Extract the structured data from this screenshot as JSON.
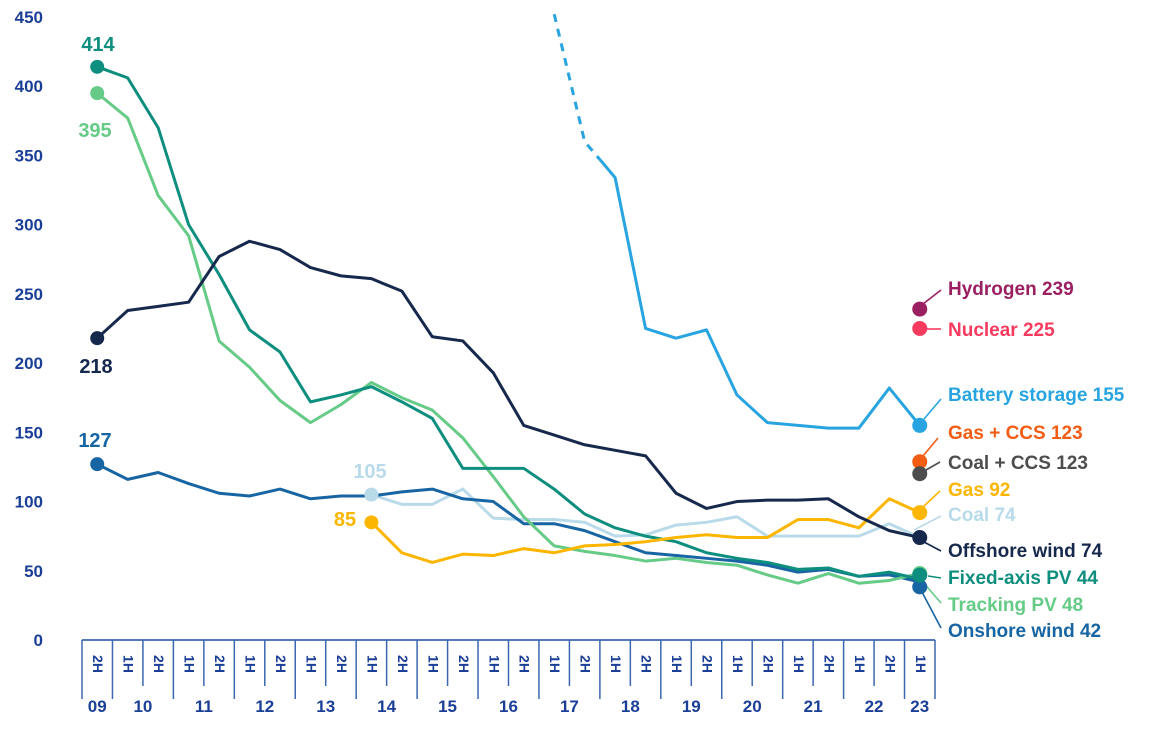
{
  "chart_data": {
    "type": "line",
    "title": "",
    "y_axis": {
      "min": 0,
      "max": 450,
      "step": 50,
      "tick_labels": [
        "450",
        "400",
        "350",
        "300",
        "250",
        "200",
        "150",
        "100",
        "50",
        "0"
      ]
    },
    "x_axis": {
      "half_period_labels": [
        "2H",
        "1H",
        "2H",
        "1H",
        "2H",
        "1H",
        "2H",
        "1H",
        "2H",
        "1H",
        "2H",
        "1H",
        "2H",
        "1H",
        "2H",
        "1H",
        "2H",
        "1H",
        "2H",
        "1H",
        "2H",
        "1H",
        "2H",
        "1H",
        "2H",
        "1H",
        "2H",
        "1H"
      ],
      "year_groups": [
        {
          "label": "09",
          "cells": [
            0,
            0
          ]
        },
        {
          "label": "10",
          "cells": [
            1,
            2
          ]
        },
        {
          "label": "11",
          "cells": [
            3,
            4
          ]
        },
        {
          "label": "12",
          "cells": [
            5,
            6
          ]
        },
        {
          "label": "13",
          "cells": [
            7,
            8
          ]
        },
        {
          "label": "14",
          "cells": [
            9,
            10
          ]
        },
        {
          "label": "15",
          "cells": [
            11,
            12
          ]
        },
        {
          "label": "16",
          "cells": [
            13,
            14
          ]
        },
        {
          "label": "17",
          "cells": [
            15,
            16
          ]
        },
        {
          "label": "18",
          "cells": [
            17,
            18
          ]
        },
        {
          "label": "19",
          "cells": [
            19,
            20
          ]
        },
        {
          "label": "20",
          "cells": [
            21,
            22
          ]
        },
        {
          "label": "21",
          "cells": [
            23,
            24
          ]
        },
        {
          "label": "22",
          "cells": [
            25,
            26
          ]
        },
        {
          "label": "23",
          "cells": [
            27,
            27
          ]
        }
      ]
    },
    "colors": {
      "axis_text": "#1b3f97",
      "axis_line": "#3c67b0"
    },
    "legend_position": "right",
    "grid": "off",
    "series": [
      {
        "id": "coal",
        "name": "Coal",
        "right_label": "Coal 74",
        "color": "#B9DAE9",
        "start_label": "105",
        "start_index": 9,
        "end_dot": false,
        "values": [
          null,
          null,
          null,
          null,
          null,
          null,
          null,
          null,
          null,
          105,
          98,
          98,
          109,
          88,
          87,
          87,
          85,
          75,
          76,
          83,
          85,
          89,
          75,
          75,
          75,
          75,
          84,
          74
        ]
      },
      {
        "id": "onshore-wind",
        "name": "Onshore wind",
        "right_label": "Onshore wind 42",
        "color": "#1765A3",
        "start_label": "127",
        "start_index": 0,
        "end_dot": true,
        "values": [
          127,
          116,
          121,
          113,
          106,
          104,
          109,
          102,
          104,
          104,
          107,
          109,
          102,
          100,
          84,
          84,
          79,
          71,
          63,
          61,
          59,
          57,
          54,
          49,
          51,
          46,
          47,
          42
        ]
      },
      {
        "id": "tracking-pv",
        "name": "Tracking PV",
        "right_label": "Tracking PV 48",
        "color": "#66CB87",
        "start_label": "395",
        "start_index": 0,
        "end_dot": true,
        "values": [
          395,
          377,
          321,
          292,
          216,
          197,
          173,
          157,
          170,
          186,
          175,
          166,
          146,
          118,
          89,
          68,
          64,
          61,
          57,
          59,
          56,
          54,
          47,
          41,
          48,
          41,
          43,
          48
        ]
      },
      {
        "id": "fixed-axis-pv",
        "name": "Fixed-axis PV",
        "right_label": "Fixed-axis PV 44",
        "color": "#0E8E7E",
        "start_label": "414",
        "start_index": 0,
        "end_dot": true,
        "values": [
          414,
          406,
          370,
          300,
          264,
          224,
          208,
          172,
          177,
          183,
          172,
          160,
          124,
          124,
          124,
          109,
          91,
          81,
          75,
          71,
          63,
          59,
          56,
          51,
          52,
          46,
          49,
          44
        ]
      },
      {
        "id": "gas",
        "name": "Gas",
        "right_label": "Gas 92",
        "color": "#FCB600",
        "start_label": "85",
        "start_index": 9,
        "end_dot": true,
        "values": [
          null,
          null,
          null,
          null,
          null,
          null,
          null,
          null,
          null,
          85,
          63,
          56,
          62,
          61,
          66,
          63,
          68,
          69,
          71,
          74,
          76,
          74,
          74,
          87,
          87,
          81,
          102,
          92
        ]
      },
      {
        "id": "offshore-wind",
        "name": "Offshore wind",
        "right_label": "Offshore wind 74",
        "color": "#16294D",
        "start_label": "218",
        "start_index": 0,
        "end_dot": true,
        "values": [
          218,
          238,
          241,
          244,
          277,
          288,
          282,
          269,
          263,
          261,
          252,
          219,
          216,
          193,
          155,
          148,
          141,
          137,
          133,
          106,
          95,
          100,
          101,
          101,
          102,
          89,
          79,
          74
        ]
      },
      {
        "id": "battery-storage",
        "name": "Battery storage",
        "right_label": "Battery storage 155",
        "color": "#28A4E0",
        "start_label": null,
        "start_index": null,
        "end_dot": true,
        "dashed_intro": {
          "indices": [
            15,
            16
          ],
          "values": [
            452,
            360
          ]
        },
        "values": [
          null,
          null,
          null,
          null,
          null,
          null,
          null,
          null,
          null,
          null,
          null,
          null,
          null,
          null,
          null,
          null,
          null,
          334,
          225,
          218,
          224,
          177,
          157,
          155,
          153,
          153,
          182,
          155
        ]
      }
    ],
    "point_markers": [
      {
        "id": "hydrogen",
        "name": "Hydrogen",
        "right_label": "Hydrogen 239",
        "color": "#9B2062",
        "value": 239
      },
      {
        "id": "nuclear",
        "name": "Nuclear",
        "right_label": "Nuclear 225",
        "color": "#F93A5F",
        "value": 225
      },
      {
        "id": "gas-ccs",
        "name": "Gas + CCS",
        "right_label": "Gas + CCS 123",
        "color": "#F25C13",
        "value": 123
      },
      {
        "id": "coal-ccs",
        "name": "Coal + CCS",
        "right_label": "Coal + CCS 123",
        "color": "#4D4D4D",
        "value": 123
      }
    ]
  }
}
